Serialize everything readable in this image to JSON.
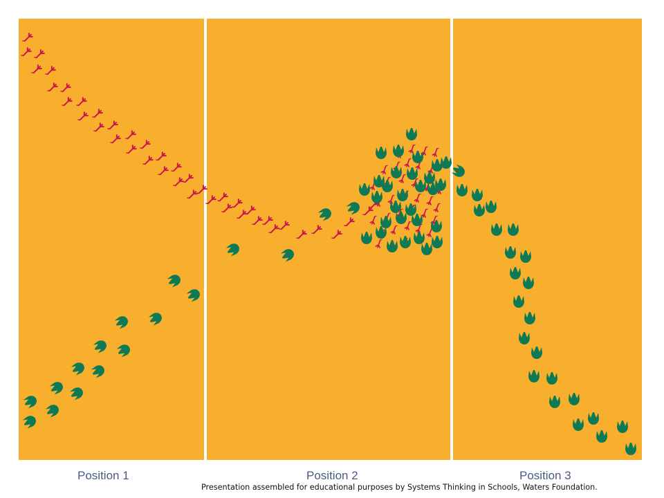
{
  "positions": [
    "Position 1",
    "Position 2",
    "Position 3"
  ],
  "credit": "Presentation assembled for educational purposes  by Systems Thinking in Schools,  Waters Foundation.",
  "colors": {
    "background": "#F7AF2D",
    "divider": "#FFFFFF",
    "predator_tracks": "#C8164E",
    "prey_tracks": "#0E7A55",
    "label": "#4A5A86"
  },
  "icons": {
    "predator": "small-bird-footprint-icon",
    "prey": "large-three-toed-footprint-icon"
  }
}
